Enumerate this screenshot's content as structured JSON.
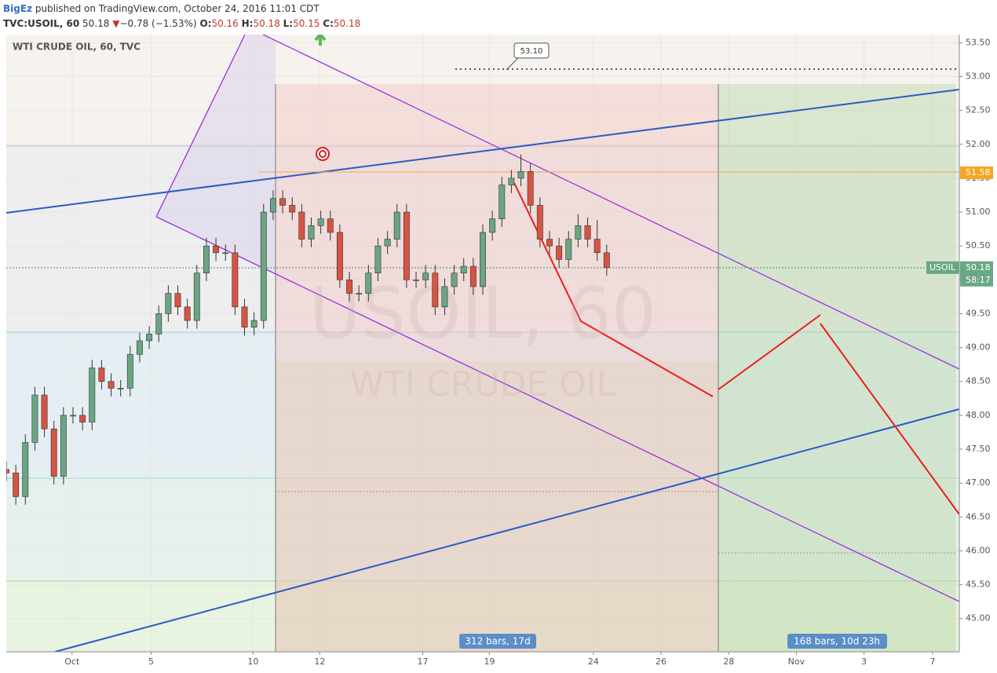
{
  "header": {
    "author": "BigEz",
    "published": "published on TradingView.com, October 24, 2016 11:01 CDT",
    "symbol": "TVC:USOIL, 60",
    "last": "50.18",
    "arrow": "▼",
    "change": "−0.78 (−1.53%)",
    "o_label": "O:",
    "o": "50.16",
    "h_label": "H:",
    "h": "50.18",
    "l_label": "L:",
    "l": "50.15",
    "c_label": "C:",
    "c": "50.18"
  },
  "chart_data": {
    "type": "candlestick",
    "title": "WTI CRUDE OIL, 60, TVC",
    "watermark": [
      "USOIL, 60",
      "WTI CRUDE OIL"
    ],
    "up_color": "#6ba583",
    "down_color": "#d75442",
    "open": [
      47.2,
      47.15,
      46.8,
      47.6,
      48.3,
      47.8,
      47.1,
      48.0,
      48.0,
      47.9,
      48.7,
      48.5,
      48.4,
      48.4,
      48.9,
      49.1,
      49.2,
      49.5,
      49.8,
      49.6,
      49.4,
      50.1,
      50.5,
      50.4,
      50.4,
      49.6,
      49.3,
      49.4,
      51.0,
      51.2,
      51.1,
      51.0,
      50.6,
      50.8,
      50.9,
      50.7,
      50.0,
      49.8,
      49.8,
      50.1,
      50.5,
      50.6,
      51.0,
      50.0,
      50.0,
      50.1,
      49.6,
      49.9,
      50.1,
      50.2,
      49.9,
      50.7,
      50.9,
      51.4,
      51.5,
      51.6,
      51.1,
      50.6,
      50.5,
      50.3,
      50.6,
      50.8,
      50.6,
      50.4
    ],
    "high": [
      47.32,
      47.27,
      47.72,
      48.42,
      48.42,
      47.92,
      48.12,
      48.12,
      48.12,
      48.82,
      48.82,
      48.62,
      48.52,
      49.02,
      49.22,
      49.32,
      49.62,
      49.92,
      49.92,
      49.72,
      50.22,
      50.62,
      50.62,
      50.52,
      50.52,
      49.72,
      49.52,
      51.12,
      51.32,
      51.32,
      51.22,
      51.12,
      50.92,
      51.02,
      51.02,
      50.82,
      50.12,
      49.92,
      50.22,
      50.62,
      50.72,
      51.12,
      51.12,
      50.12,
      50.22,
      50.22,
      50.02,
      50.22,
      50.32,
      50.32,
      50.82,
      51.02,
      51.52,
      51.62,
      51.85,
      51.72,
      51.22,
      50.72,
      50.62,
      50.72,
      50.97,
      50.92,
      50.88,
      50.52
    ],
    "low": [
      47.03,
      46.68,
      46.68,
      47.48,
      47.68,
      46.98,
      46.98,
      47.88,
      47.78,
      47.78,
      48.38,
      48.28,
      48.28,
      48.28,
      48.78,
      48.98,
      49.08,
      49.38,
      49.48,
      49.28,
      49.28,
      49.98,
      50.28,
      50.28,
      49.48,
      49.18,
      49.18,
      49.28,
      50.88,
      50.98,
      50.88,
      50.48,
      50.48,
      50.68,
      50.58,
      49.88,
      49.68,
      49.68,
      49.68,
      49.98,
      50.38,
      50.48,
      49.88,
      49.88,
      49.88,
      49.48,
      49.48,
      49.78,
      49.98,
      49.78,
      49.78,
      50.58,
      50.78,
      51.28,
      51.38,
      50.98,
      50.48,
      50.38,
      50.18,
      50.18,
      50.48,
      50.48,
      50.28,
      50.06
    ],
    "close": [
      47.15,
      46.8,
      47.6,
      48.3,
      47.8,
      47.1,
      48.0,
      48.0,
      47.9,
      48.7,
      48.5,
      48.4,
      48.4,
      48.9,
      49.1,
      49.2,
      49.5,
      49.8,
      49.6,
      49.4,
      50.1,
      50.5,
      50.4,
      50.4,
      49.6,
      49.3,
      49.4,
      51.0,
      51.2,
      51.1,
      51.0,
      50.6,
      50.8,
      50.9,
      50.7,
      50.0,
      49.8,
      49.8,
      50.1,
      50.5,
      50.6,
      51.0,
      50.0,
      50.0,
      50.1,
      49.6,
      49.9,
      50.1,
      50.2,
      49.9,
      50.7,
      50.9,
      51.4,
      51.5,
      51.6,
      51.1,
      50.6,
      50.5,
      50.3,
      50.6,
      50.8,
      50.6,
      50.4,
      50.18
    ],
    "xlim": [
      0,
      100
    ],
    "xticks": [
      {
        "value": 6.9,
        "label": "Oct"
      },
      {
        "value": 15.2,
        "label": "5"
      },
      {
        "value": 25.9,
        "label": "10"
      },
      {
        "value": 32.9,
        "label": "12"
      },
      {
        "value": 43.7,
        "label": "17"
      },
      {
        "value": 50.7,
        "label": "19"
      },
      {
        "value": 61.6,
        "label": "24"
      },
      {
        "value": 68.7,
        "label": "26"
      },
      {
        "value": 75.8,
        "label": "28"
      },
      {
        "value": 82.9,
        "label": "Nov"
      },
      {
        "value": 90.0,
        "label": "3"
      },
      {
        "value": 97.2,
        "label": "7"
      }
    ],
    "ylim": [
      44.51,
      53.62
    ],
    "yticks": [
      {
        "value": 45,
        "label": "45.00"
      },
      {
        "value": 45.5,
        "label": "45.50"
      },
      {
        "value": 46,
        "label": "46.00"
      },
      {
        "value": 46.5,
        "label": "46.50"
      },
      {
        "value": 47,
        "label": "47.00"
      },
      {
        "value": 47.5,
        "label": "47.50"
      },
      {
        "value": 48,
        "label": "48.00"
      },
      {
        "value": 48.5,
        "label": "48.50"
      },
      {
        "value": 49,
        "label": "49.00"
      },
      {
        "value": 49.5,
        "label": "49.50"
      },
      {
        "value": 50,
        "label": "50.00"
      },
      {
        "value": 50.5,
        "label": "50.50"
      },
      {
        "value": 51,
        "label": "51.00"
      },
      {
        "value": 51.5,
        "label": "51.50"
      },
      {
        "value": 52,
        "label": "52.00"
      },
      {
        "value": 52.5,
        "label": "52.50"
      },
      {
        "value": 53,
        "label": "53.00"
      },
      {
        "value": 53.5,
        "label": "53.50"
      }
    ],
    "grid": true,
    "price_marks": [
      {
        "value": 53.1,
        "label": "53.10"
      },
      {
        "value": 51.58,
        "label": "51.58"
      },
      {
        "value": 50.18,
        "label": "50.18"
      }
    ],
    "last_name": "USOIL",
    "countdown": "58:17",
    "ranges": [
      "312 bars, 17d",
      "168 bars, 10d 23h"
    ]
  }
}
